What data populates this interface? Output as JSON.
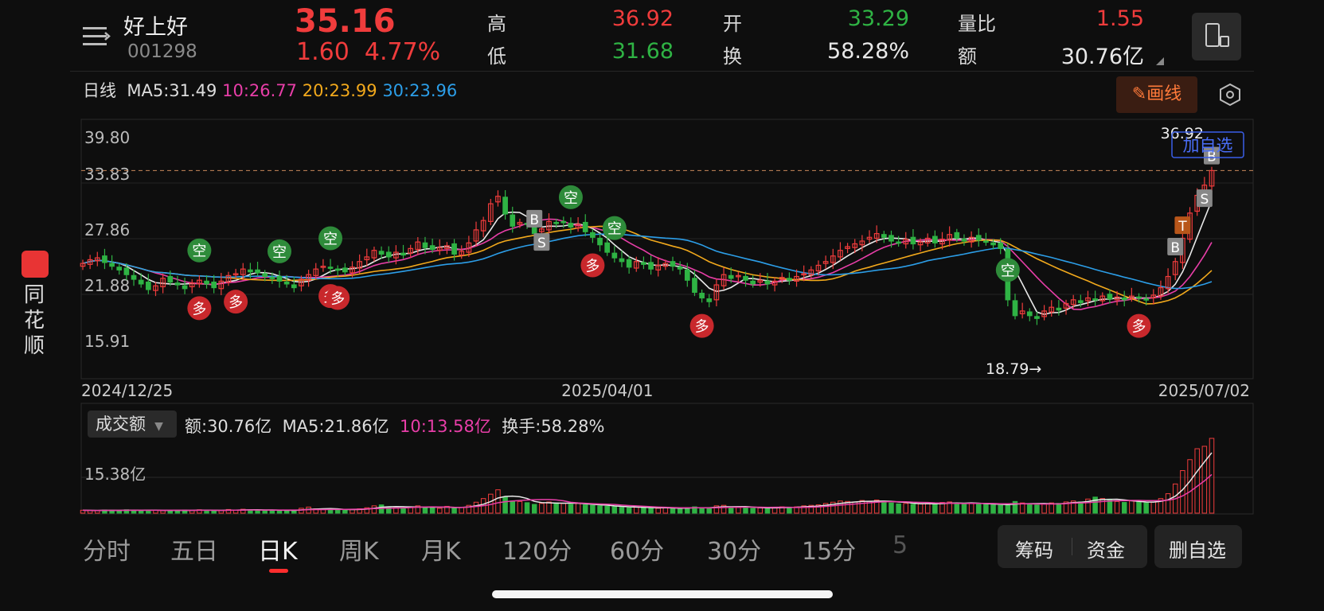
{
  "header": {
    "name": "好上好",
    "code": "001298",
    "price": "35.16",
    "change": "1.60",
    "change_pct": "4.77%",
    "quotes": [
      {
        "label": "高",
        "value": "36.92",
        "color": "#f03c3c"
      },
      {
        "label": "开",
        "value": "33.29",
        "color": "#2fb344"
      },
      {
        "label": "量比",
        "value": "1.55",
        "color": "#f03c3c"
      },
      {
        "label": "低",
        "value": "31.68",
        "color": "#2fb344"
      },
      {
        "label": "换",
        "value": "58.28%",
        "color": "#e8e8e8"
      },
      {
        "label": "额",
        "value": "30.76亿",
        "color": "#e8e8e8"
      }
    ]
  },
  "ma_line": {
    "period": "日线",
    "ma5": "MA5:31.49",
    "ma10": "10:26.77",
    "ma20": "20:23.99",
    "ma30": "30:23.96"
  },
  "toolbar": {
    "draw_label": "画线"
  },
  "colors": {
    "up": "#f03c3c",
    "down": "#2fb344",
    "ma5": "#e8e8e8",
    "ma10": "#e83ea8",
    "ma20": "#f2a91c",
    "ma30": "#2c9ee8"
  },
  "chart_data": {
    "type": "candlestick",
    "x_labels": [
      "2024/12/25",
      "2025/04/01",
      "2025/07/02"
    ],
    "y_ticks": [
      "39.80",
      "33.83",
      "27.86",
      "21.88",
      "15.91"
    ],
    "ylim": [
      15.91,
      39.8
    ],
    "current_price_line": 35.16,
    "annotations": {
      "high_label": "36.92",
      "low_label": "18.79→",
      "add_watch": "加自选",
      "markers": [
        {
          "text": "空",
          "type": "short",
          "date": "2025/01/13"
        },
        {
          "text": "空",
          "type": "short",
          "date": "2025/01/27"
        },
        {
          "text": "空",
          "type": "short",
          "date": "2025/02/05"
        },
        {
          "text": "多",
          "type": "long",
          "date": "2025/01/14"
        },
        {
          "text": "多",
          "type": "long",
          "date": "2025/01/20"
        },
        {
          "text": "多",
          "type": "long",
          "date": "2025/02/04"
        },
        {
          "text": "多",
          "type": "long",
          "date": "2025/02/06"
        },
        {
          "text": "B",
          "type": "buy",
          "date": "2025/03/11"
        },
        {
          "text": "S",
          "type": "sell",
          "date": "2025/03/12"
        },
        {
          "text": "空",
          "type": "short",
          "date": "2025/03/17"
        },
        {
          "text": "空",
          "type": "short",
          "date": "2025/03/24"
        },
        {
          "text": "多",
          "type": "long",
          "date": "2025/03/20"
        },
        {
          "text": "多",
          "type": "long",
          "date": "2025/04/08"
        },
        {
          "text": "空",
          "type": "short",
          "date": "2025/05/29"
        },
        {
          "text": "多",
          "type": "long",
          "date": "2025/06/20"
        },
        {
          "text": "B",
          "type": "buy",
          "date": "2025/06/26"
        },
        {
          "text": "T",
          "type": "t",
          "date": "2025/06/27"
        },
        {
          "text": "S",
          "type": "sell",
          "date": "2025/07/01"
        },
        {
          "text": "B",
          "type": "buy",
          "date": "2025/07/02"
        }
      ]
    },
    "close": [
      25.2,
      25.6,
      25.8,
      25.3,
      24.9,
      24.5,
      24.0,
      23.5,
      23.0,
      22.4,
      22.8,
      23.6,
      23.2,
      22.9,
      22.5,
      23.1,
      23.4,
      23.0,
      22.6,
      23.3,
      23.9,
      24.1,
      24.6,
      24.3,
      24.2,
      23.8,
      23.6,
      23.3,
      23.0,
      22.6,
      23.5,
      24.0,
      24.6,
      24.9,
      24.7,
      24.5,
      24.3,
      24.8,
      25.4,
      25.9,
      26.6,
      26.2,
      25.9,
      26.4,
      26.1,
      26.8,
      27.5,
      26.9,
      26.7,
      26.9,
      27.1,
      26.2,
      26.5,
      27.4,
      28.8,
      29.8,
      31.6,
      32.4,
      30.5,
      29.2,
      29.6,
      29.4,
      28.4,
      28.9,
      29.7,
      29.5,
      29.6,
      29.1,
      29.4,
      28.6,
      28.0,
      27.2,
      26.4,
      25.8,
      25.4,
      24.8,
      25.4,
      25.1,
      24.6,
      25.0,
      25.2,
      24.9,
      24.6,
      23.4,
      22.1,
      21.5,
      21.1,
      22.9,
      24.0,
      23.6,
      23.9,
      23.4,
      23.0,
      23.4,
      23.0,
      23.3,
      23.7,
      23.4,
      23.8,
      24.1,
      24.5,
      25.0,
      25.4,
      26.0,
      26.6,
      27.0,
      27.3,
      27.6,
      28.0,
      28.4,
      28.0,
      27.6,
      27.4,
      27.8,
      27.3,
      27.5,
      27.9,
      27.4,
      27.8,
      28.3,
      27.9,
      27.6,
      28.0,
      27.7,
      27.5,
      27.2,
      26.8,
      21.3,
      19.6,
      20.1,
      19.6,
      19.3,
      20.1,
      20.5,
      20.2,
      20.9,
      21.3,
      21.0,
      21.5,
      21.3,
      21.7,
      21.4,
      21.6,
      21.3,
      21.7,
      21.5,
      21.3,
      21.8,
      22.6,
      23.8,
      25.4,
      27.9,
      30.6,
      32.5,
      33.6,
      35.16
    ],
    "volume_unit": "亿",
    "volume_header": {
      "selector": "成交额",
      "amount": "额:30.76亿",
      "ma5": "MA5:21.86亿",
      "ma10": "10:13.58亿",
      "turnover": "换手:58.28%"
    },
    "volume_ytick": "15.38亿",
    "volume_ylim": [
      0,
      30.76
    ],
    "volume": [
      1.2,
      1.1,
      1.0,
      1.3,
      1.2,
      1.1,
      1.4,
      1.2,
      1.1,
      1.3,
      1.2,
      1.0,
      1.1,
      1.2,
      1.3,
      1.1,
      1.4,
      1.2,
      1.0,
      1.1,
      1.5,
      1.3,
      1.6,
      1.4,
      1.2,
      1.1,
      1.3,
      1.2,
      1.1,
      1.0,
      2.0,
      2.5,
      1.8,
      1.6,
      1.5,
      1.3,
      1.4,
      1.6,
      1.8,
      2.2,
      3.0,
      3.4,
      2.6,
      2.2,
      2.0,
      2.6,
      3.0,
      2.4,
      2.2,
      2.0,
      2.8,
      2.2,
      2.4,
      3.2,
      4.5,
      6.0,
      7.8,
      9.6,
      6.5,
      5.0,
      4.8,
      4.3,
      3.6,
      4.0,
      4.6,
      4.2,
      4.0,
      3.6,
      4.0,
      3.4,
      3.2,
      3.0,
      2.8,
      2.6,
      2.4,
      2.2,
      2.5,
      2.3,
      2.1,
      2.0,
      2.2,
      2.0,
      1.9,
      2.3,
      2.6,
      2.2,
      2.0,
      3.0,
      3.2,
      2.6,
      2.4,
      2.2,
      2.0,
      2.2,
      2.1,
      2.3,
      2.6,
      2.4,
      2.6,
      3.0,
      3.2,
      3.4,
      4.0,
      4.5,
      5.0,
      4.8,
      4.6,
      5.2,
      4.8,
      5.4,
      4.8,
      4.2,
      3.8,
      4.0,
      3.6,
      3.8,
      4.2,
      3.6,
      4.4,
      4.6,
      4.0,
      3.8,
      4.2,
      3.8,
      3.6,
      3.4,
      3.2,
      3.6,
      4.8,
      4.2,
      3.6,
      3.4,
      3.8,
      4.2,
      4.0,
      4.6,
      5.0,
      4.6,
      5.8,
      6.6,
      6.0,
      5.4,
      4.8,
      4.4,
      5.0,
      4.6,
      4.2,
      4.6,
      6.0,
      8.0,
      12.0,
      17.5,
      22.0,
      26.5,
      27.5,
      30.76
    ]
  },
  "tabs": [
    "分时",
    "五日",
    "日K",
    "周K",
    "月K",
    "120分",
    "60分",
    "30分",
    "15分",
    "5"
  ],
  "buttons": {
    "chips": "筹码",
    "funds": "资金",
    "remove_watch": "删自选"
  },
  "sidebar": {
    "app_name": "同花顺"
  }
}
